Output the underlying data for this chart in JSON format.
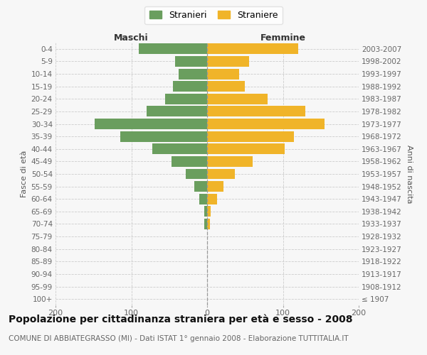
{
  "age_groups": [
    "100+",
    "95-99",
    "90-94",
    "85-89",
    "80-84",
    "75-79",
    "70-74",
    "65-69",
    "60-64",
    "55-59",
    "50-54",
    "45-49",
    "40-44",
    "35-39",
    "30-34",
    "25-29",
    "20-24",
    "15-19",
    "10-14",
    "5-9",
    "0-4"
  ],
  "birth_years": [
    "≤ 1907",
    "1908-1912",
    "1913-1917",
    "1918-1922",
    "1923-1927",
    "1928-1932",
    "1933-1937",
    "1938-1942",
    "1943-1947",
    "1948-1952",
    "1953-1957",
    "1958-1962",
    "1963-1967",
    "1968-1972",
    "1973-1977",
    "1978-1982",
    "1983-1987",
    "1988-1992",
    "1993-1997",
    "1998-2002",
    "2003-2007"
  ],
  "maschi": [
    0,
    0,
    0,
    0,
    0,
    0,
    4,
    4,
    10,
    17,
    28,
    47,
    72,
    115,
    148,
    80,
    55,
    45,
    38,
    42,
    90
  ],
  "femmine": [
    0,
    0,
    0,
    0,
    0,
    0,
    4,
    5,
    13,
    22,
    37,
    60,
    102,
    115,
    155,
    130,
    80,
    50,
    42,
    55,
    120
  ],
  "maschi_color": "#6a9e5e",
  "femmine_color": "#f0b429",
  "background_color": "#f7f7f7",
  "grid_color": "#cccccc",
  "title": "Popolazione per cittadinanza straniera per età e sesso - 2008",
  "subtitle": "COMUNE DI ABBIATEGRASSO (MI) - Dati ISTAT 1° gennaio 2008 - Elaborazione TUTTITALIA.IT",
  "header_left": "Maschi",
  "header_right": "Femmine",
  "ylabel_left": "Fasce di età",
  "ylabel_right": "Anni di nascita",
  "legend_maschi": "Stranieri",
  "legend_femmine": "Straniere",
  "xlim": 200,
  "title_fontsize": 10,
  "subtitle_fontsize": 7.5,
  "bar_height": 0.85
}
